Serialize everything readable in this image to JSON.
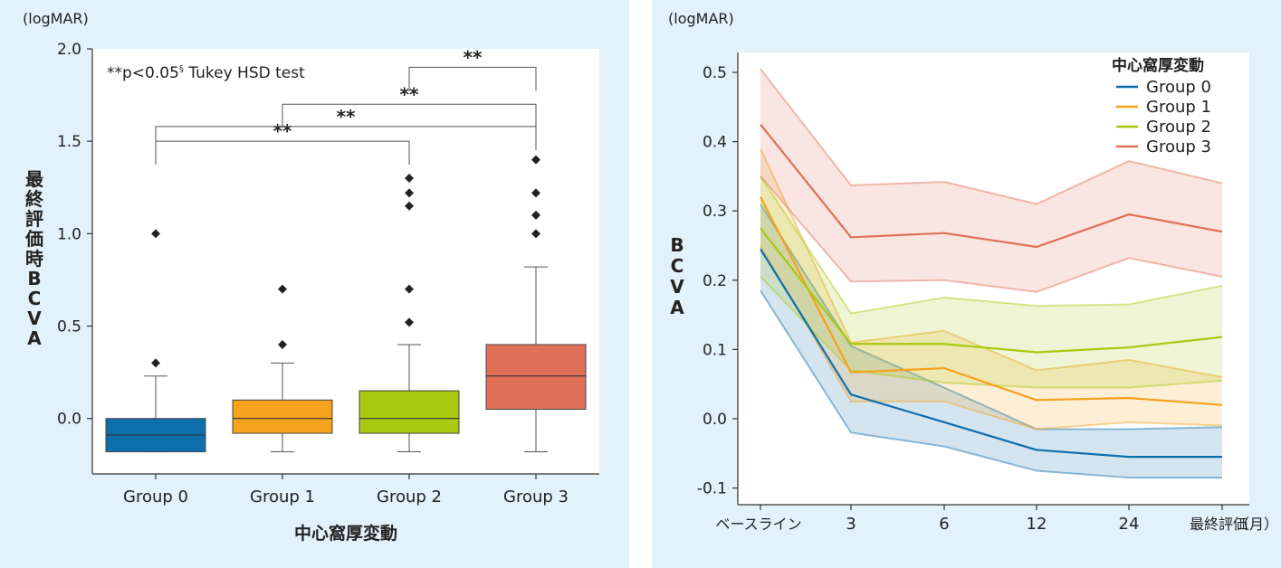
{
  "colors": {
    "group0": "#0e6fad",
    "group1": "#f5a21c",
    "group2": "#a8c90f",
    "group3": "#e07057",
    "panel_bg": "#e3f1fa"
  },
  "chart_data": [
    {
      "type": "box",
      "unit_label": "(logMAR)",
      "ylabel_chars": [
        "最",
        "終",
        "評",
        "価",
        "時",
        "B",
        "C",
        "V",
        "A"
      ],
      "xlabel": "中心窩厚変動",
      "ylim": [
        -0.3,
        2.0
      ],
      "yticks": [
        {
          "value": 2.0,
          "label": "2.0"
        },
        {
          "value": 1.5,
          "label": "1.5"
        },
        {
          "value": 1.0,
          "label": "1.0"
        },
        {
          "value": 0.5,
          "label": "0.5"
        },
        {
          "value": 0.0,
          "label": "0.0"
        }
      ],
      "note_text": "**p<0.05",
      "note_superscript": "§",
      "note_suffix": " Tukey HSD test",
      "categories": [
        "Group 0",
        "Group 1",
        "Group 2",
        "Group 3"
      ],
      "boxes": [
        {
          "name": "Group 0",
          "q1": -0.18,
          "median": -0.09,
          "q3": 0.0,
          "whisker_low": -0.18,
          "whisker_high": 0.23,
          "outliers": [
            0.3,
            1.0
          ]
        },
        {
          "name": "Group 1",
          "q1": -0.08,
          "median": 0.0,
          "q3": 0.1,
          "whisker_low": -0.18,
          "whisker_high": 0.3,
          "outliers": [
            0.4,
            0.7
          ]
        },
        {
          "name": "Group 2",
          "q1": -0.08,
          "median": 0.0,
          "q3": 0.15,
          "whisker_low": -0.18,
          "whisker_high": 0.4,
          "outliers": [
            0.52,
            0.7,
            1.15,
            1.22,
            1.3
          ]
        },
        {
          "name": "Group 3",
          "q1": 0.05,
          "median": 0.23,
          "q3": 0.4,
          "whisker_low": -0.18,
          "whisker_high": 0.82,
          "outliers": [
            1.0,
            1.1,
            1.22,
            1.4
          ]
        }
      ],
      "significance": [
        {
          "from": 0,
          "to": 2,
          "level": 1.5,
          "label": "**"
        },
        {
          "from": 0,
          "to": 3,
          "level": 1.58,
          "label": "**"
        },
        {
          "from": 1,
          "to": 3,
          "level": 1.7,
          "label": "**"
        },
        {
          "from": 2,
          "to": 3,
          "level": 1.9,
          "label": "**"
        }
      ]
    },
    {
      "type": "line",
      "unit_label": "(logMAR)",
      "ylabel_chars": [
        "B",
        "C",
        "V",
        "A"
      ],
      "ylim": [
        -0.1,
        0.52
      ],
      "yticks": [
        {
          "value": 0.5,
          "label": "0.5"
        },
        {
          "value": 0.4,
          "label": "0.4"
        },
        {
          "value": 0.3,
          "label": "0.3"
        },
        {
          "value": 0.2,
          "label": "0.2"
        },
        {
          "value": 0.1,
          "label": "0.1"
        },
        {
          "value": 0.0,
          "label": "0.0"
        },
        {
          "value": -0.1,
          "label": "-0.1"
        }
      ],
      "x": [
        "ベースライン",
        "3",
        "6",
        "12",
        "24",
        "最終評価"
      ],
      "x_unit": "（月）",
      "legend_title": "中心窩厚変動",
      "series": [
        {
          "name": "Group 0",
          "values": [
            0.245,
            0.035,
            -0.005,
            -0.045,
            -0.055,
            -0.055
          ],
          "lower": [
            0.185,
            -0.02,
            -0.04,
            -0.075,
            -0.085,
            -0.085
          ],
          "upper": [
            0.31,
            0.105,
            0.045,
            -0.015,
            -0.015,
            -0.012
          ]
        },
        {
          "name": "Group 1",
          "values": [
            0.32,
            0.067,
            0.073,
            0.027,
            0.03,
            0.02
          ],
          "lower": [
            0.25,
            0.025,
            0.025,
            -0.015,
            -0.005,
            -0.01
          ],
          "upper": [
            0.39,
            0.11,
            0.127,
            0.07,
            0.085,
            0.06
          ]
        },
        {
          "name": "Group 2",
          "values": [
            0.275,
            0.108,
            0.108,
            0.096,
            0.103,
            0.118
          ],
          "lower": [
            0.205,
            0.07,
            0.052,
            0.045,
            0.045,
            0.055
          ],
          "upper": [
            0.35,
            0.152,
            0.175,
            0.163,
            0.165,
            0.192
          ]
        },
        {
          "name": "Group 3",
          "values": [
            0.425,
            0.262,
            0.268,
            0.248,
            0.295,
            0.27
          ],
          "lower": [
            0.35,
            0.198,
            0.2,
            0.183,
            0.232,
            0.205
          ],
          "upper": [
            0.505,
            0.337,
            0.342,
            0.31,
            0.372,
            0.34
          ]
        }
      ]
    }
  ]
}
